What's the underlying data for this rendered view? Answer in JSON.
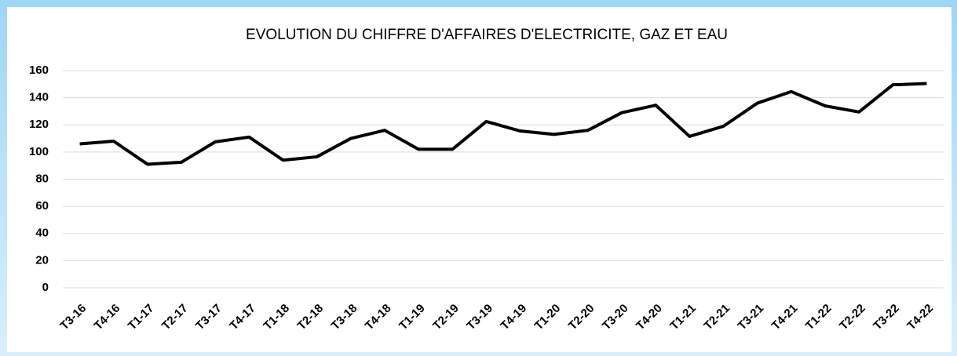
{
  "chart_data": {
    "type": "line",
    "title": "EVOLUTION DU CHIFFRE D'AFFAIRES D'ELECTRICITE, GAZ ET EAU",
    "categories": [
      "T3-16",
      "T4-16",
      "T1-17",
      "T2-17",
      "T3-17",
      "T4-17",
      "T1-18",
      "T2-18",
      "T3-18",
      "T4-18",
      "T1-19",
      "T2-19",
      "T3-19",
      "T4-19",
      "T1-20",
      "T2-20",
      "T3-20",
      "T4-20",
      "T1-21",
      "T2-21",
      "T3-21",
      "T4-21",
      "T1-22",
      "T2-22",
      "T3-22",
      "T4-22"
    ],
    "values": [
      106,
      108,
      91,
      92.5,
      107.5,
      111,
      94,
      96.5,
      110,
      116,
      102,
      102,
      122.5,
      115.5,
      113,
      116,
      129,
      134.5,
      111.5,
      119,
      136,
      144.5,
      134,
      129.5,
      149.5,
      150.5
    ],
    "color": "#000000",
    "ylim": [
      0,
      160
    ],
    "yticks": [
      0,
      20,
      40,
      60,
      80,
      100,
      120,
      140,
      160
    ],
    "grid": true
  }
}
